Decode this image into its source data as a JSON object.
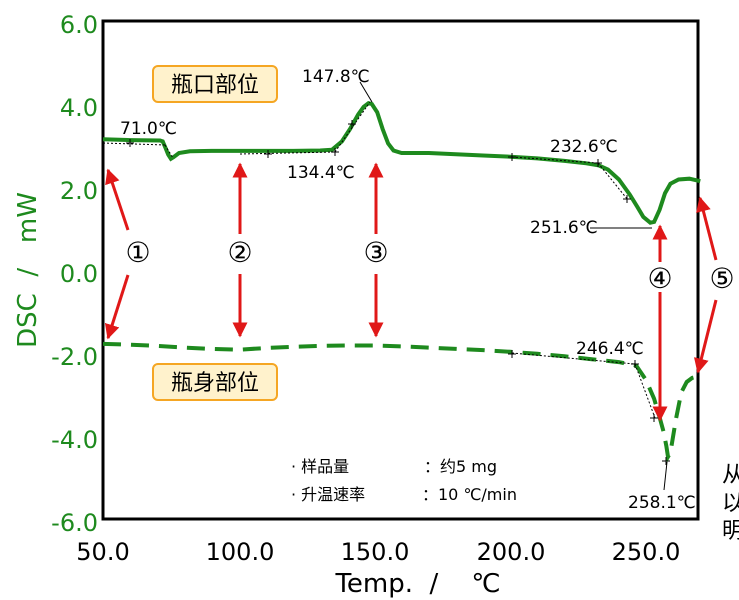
{
  "chart_data": {
    "type": "line",
    "xlabel": "Temp.  /    ℃",
    "ylabel": "DSC  /   mW",
    "xlim": [
      50,
      272
    ],
    "ylim": [
      -6,
      6
    ],
    "x_ticks": [
      "50.0",
      "100.0",
      "150.0",
      "200.0",
      "250.0"
    ],
    "y_ticks": [
      "6.0",
      "4.0",
      "2.0",
      "0.0",
      "-2.0",
      "-4.0",
      "-6.0"
    ],
    "x_tick_values": [
      50,
      100,
      150,
      200,
      250
    ],
    "y_tick_values": [
      6,
      4,
      2,
      0,
      -2,
      -4,
      -6
    ],
    "series": [
      {
        "name": "瓶口部位",
        "color": "#1e8a1e",
        "style": "solid",
        "points": [
          [
            50,
            3.15
          ],
          [
            60,
            3.13
          ],
          [
            71,
            3.12
          ],
          [
            72,
            3.1
          ],
          [
            73,
            2.95
          ],
          [
            74,
            2.78
          ],
          [
            75,
            2.68
          ],
          [
            76,
            2.72
          ],
          [
            78,
            2.82
          ],
          [
            82,
            2.86
          ],
          [
            90,
            2.87
          ],
          [
            100,
            2.87
          ],
          [
            110,
            2.87
          ],
          [
            120,
            2.87
          ],
          [
            130,
            2.88
          ],
          [
            134.4,
            2.9
          ],
          [
            138,
            3.1
          ],
          [
            141,
            3.4
          ],
          [
            144,
            3.75
          ],
          [
            146,
            3.93
          ],
          [
            147.8,
            4.02
          ],
          [
            149,
            4.0
          ],
          [
            151,
            3.8
          ],
          [
            153,
            3.4
          ],
          [
            155,
            3.05
          ],
          [
            157,
            2.88
          ],
          [
            160,
            2.82
          ],
          [
            170,
            2.82
          ],
          [
            180,
            2.79
          ],
          [
            190,
            2.76
          ],
          [
            200,
            2.73
          ],
          [
            210,
            2.69
          ],
          [
            220,
            2.63
          ],
          [
            228,
            2.57
          ],
          [
            232.6,
            2.52
          ],
          [
            236,
            2.42
          ],
          [
            240,
            2.18
          ],
          [
            244,
            1.82
          ],
          [
            247,
            1.5
          ],
          [
            249,
            1.28
          ],
          [
            251.6,
            1.14
          ],
          [
            253,
            1.16
          ],
          [
            255,
            1.45
          ],
          [
            257,
            1.85
          ],
          [
            259,
            2.08
          ],
          [
            262,
            2.18
          ],
          [
            266,
            2.2
          ],
          [
            270,
            2.14
          ]
        ]
      },
      {
        "name": "瓶身部位",
        "color": "#1e8a1e",
        "style": "dashed",
        "points": [
          [
            50,
            -1.78
          ],
          [
            60,
            -1.8
          ],
          [
            70,
            -1.83
          ],
          [
            80,
            -1.87
          ],
          [
            90,
            -1.9
          ],
          [
            100,
            -1.92
          ],
          [
            110,
            -1.88
          ],
          [
            120,
            -1.85
          ],
          [
            130,
            -1.83
          ],
          [
            140,
            -1.82
          ],
          [
            150,
            -1.82
          ],
          [
            160,
            -1.84
          ],
          [
            170,
            -1.87
          ],
          [
            180,
            -1.9
          ],
          [
            190,
            -1.93
          ],
          [
            200,
            -1.97
          ],
          [
            210,
            -2.02
          ],
          [
            220,
            -2.08
          ],
          [
            230,
            -2.15
          ],
          [
            240,
            -2.22
          ],
          [
            246.4,
            -2.3
          ],
          [
            250,
            -2.65
          ],
          [
            253,
            -3.1
          ],
          [
            255,
            -3.55
          ],
          [
            256.5,
            -3.9
          ],
          [
            257.5,
            -4.25
          ],
          [
            258.1,
            -4.5
          ],
          [
            259,
            -4.4
          ],
          [
            261,
            -3.6
          ],
          [
            263,
            -2.95
          ],
          [
            265,
            -2.7
          ],
          [
            267,
            -2.6
          ],
          [
            270,
            -2.55
          ]
        ]
      }
    ],
    "annotations": {
      "a1": "71.0℃",
      "a2": "147.8℃",
      "a3": "134.4℃",
      "a4": "232.6℃",
      "a5": "251.6℃",
      "a6": "246.4℃",
      "a7": "258.1℃"
    },
    "region_labels": {
      "top": "瓶口部位",
      "bottom": "瓶身部位"
    },
    "markers": [
      "①",
      "②",
      "③",
      "④",
      "⑤"
    ],
    "notes": {
      "line1_label": "· 样品量",
      "line1_value": "：约5 mg",
      "line2_label": "· 升温速率",
      "line2_value": "：10 ℃/min"
    },
    "side_text": [
      "从",
      "以",
      "明"
    ]
  }
}
